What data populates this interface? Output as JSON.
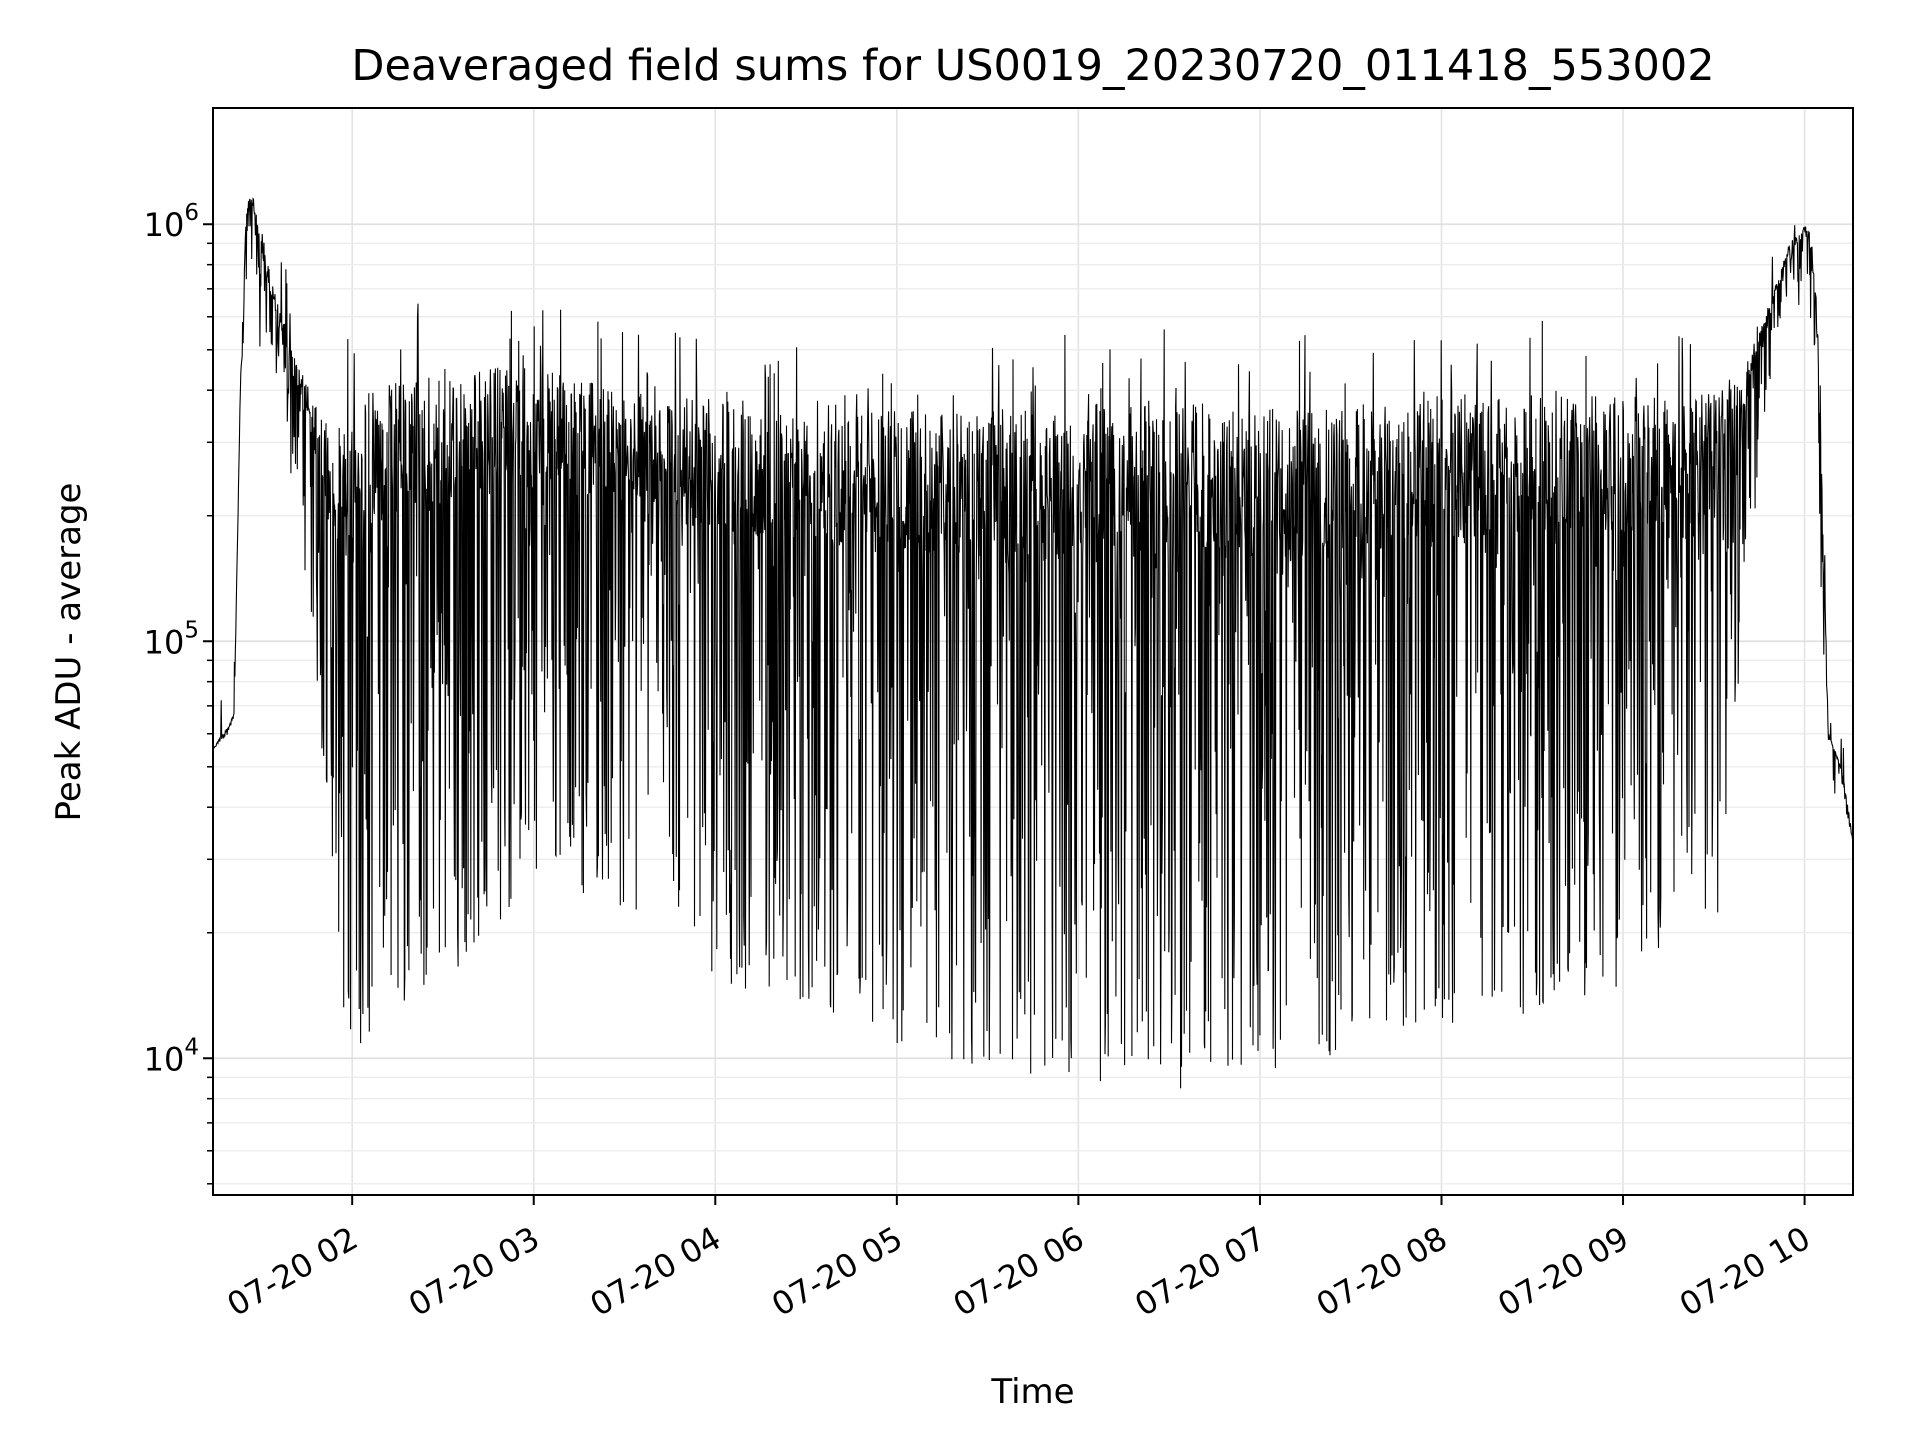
{
  "chart_data": {
    "type": "line",
    "title": "Deaveraged field sums for US0019_20230720_011418_553002",
    "xlabel": "Time",
    "ylabel": "Peak ADU - average",
    "yscale": "log",
    "grid": true,
    "line_color": "#000000",
    "xlim": [
      "2023-07-20 01:14",
      "2023-07-20 10:16"
    ],
    "ylim": [
      4700,
      1900000
    ],
    "x_ticks": [
      "07-20 02",
      "07-20 03",
      "07-20 04",
      "07-20 05",
      "07-20 06",
      "07-20 07",
      "07-20 08",
      "07-20 09",
      "07-20 10"
    ],
    "y_ticks": [
      {
        "base": "10",
        "exp": "4"
      },
      {
        "base": "10",
        "exp": "5"
      },
      {
        "base": "10",
        "exp": "6"
      }
    ],
    "series": [
      {
        "x": [
          "2023-07-20 01:14",
          "2023-07-20 01:17",
          "2023-07-20 01:19",
          "2023-07-20 01:21",
          "2023-07-20 01:23",
          "2023-07-20 01:25",
          "2023-07-20 01:27",
          "2023-07-20 01:29",
          "2023-07-20 01:31",
          "2023-07-20 01:34",
          "2023-07-20 01:37",
          "2023-07-20 01:40",
          "2023-07-20 01:43",
          "2023-07-20 01:46",
          "2023-07-20 01:49",
          "2023-07-20 01:52",
          "2023-07-20 01:55",
          "2023-07-20 01:58",
          "2023-07-20 02:01",
          "2023-07-20 02:05",
          "2023-07-20 02:10",
          "2023-07-20 02:20",
          "2023-07-20 02:30",
          "2023-07-20 02:45",
          "2023-07-20 03:00",
          "2023-07-20 03:30",
          "2023-07-20 04:00",
          "2023-07-20 04:30",
          "2023-07-20 05:00",
          "2023-07-20 05:30",
          "2023-07-20 06:00",
          "2023-07-20 06:30",
          "2023-07-20 07:00",
          "2023-07-20 07:30",
          "2023-07-20 08:00",
          "2023-07-20 08:30",
          "2023-07-20 09:00",
          "2023-07-20 09:30",
          "2023-07-20 09:40",
          "2023-07-20 09:50",
          "2023-07-20 09:55",
          "2023-07-20 10:00",
          "2023-07-20 10:02",
          "2023-07-20 10:04",
          "2023-07-20 10:06",
          "2023-07-20 10:08",
          "2023-07-20 10:10",
          "2023-07-20 10:12",
          "2023-07-20 10:14",
          "2023-07-20 10:16"
        ],
        "upper": [
          55000,
          60000,
          62000,
          68000,
          400000,
          1100000,
          1200000,
          1000000,
          900000,
          700000,
          600000,
          500000,
          450000,
          400000,
          350000,
          330000,
          320000,
          350000,
          380000,
          400000,
          420000,
          430000,
          450000,
          460000,
          450000,
          400000,
          380000,
          370000,
          360000,
          360000,
          370000,
          380000,
          360000,
          370000,
          380000,
          390000,
          390000,
          400000,
          450000,
          700000,
          900000,
          1000000,
          950000,
          700000,
          200000,
          60000,
          55000,
          50000,
          42000,
          33000
        ],
        "lower": [
          55000,
          58000,
          60000,
          65000,
          300000,
          900000,
          900000,
          700000,
          550000,
          450000,
          350000,
          280000,
          220000,
          150000,
          80000,
          40000,
          20000,
          15000,
          13000,
          14000,
          15000,
          18000,
          20000,
          25000,
          35000,
          30000,
          20000,
          18000,
          14000,
          12000,
          11000,
          11000,
          12000,
          13000,
          15000,
          17000,
          18000,
          22000,
          150000,
          500000,
          700000,
          800000,
          600000,
          350000,
          120000,
          55000,
          50000,
          45000,
          38000,
          33000
        ]
      }
    ]
  }
}
